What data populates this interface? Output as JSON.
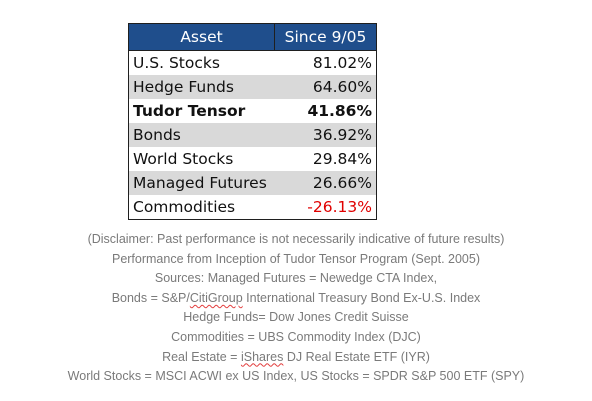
{
  "table": {
    "headers": [
      "Asset",
      "Since 9/05"
    ],
    "rows": [
      {
        "asset": "U.S. Stocks",
        "value": "81.02%"
      },
      {
        "asset": "Hedge Funds",
        "value": "64.60%"
      },
      {
        "asset": "Tudor Tensor",
        "value": "41.86%"
      },
      {
        "asset": "Bonds",
        "value": "36.92%"
      },
      {
        "asset": "World Stocks",
        "value": "29.84%"
      },
      {
        "asset": "Managed Futures",
        "value": "26.66%"
      },
      {
        "asset": "Commodities",
        "value": "-26.13%"
      }
    ]
  },
  "colors": {
    "header_bg": "#1f4e8c",
    "stripe": "#d9d9d9",
    "negative": "#e00000",
    "notes_text": "#7a7a7a"
  },
  "notes": {
    "disclaimer": "(Disclaimer: Past performance is not necessarily indicative of future results)",
    "performance": "Performance from Inception of Tudor Tensor Program (Sept. 2005)",
    "sources": "Sources: Managed Futures = Newedge CTA Index,",
    "bonds_prefix": "Bonds = S&P/",
    "bonds_citi": "CitiGroup",
    "bonds_suffix": " International Treasury Bond Ex-U.S. Index",
    "hedge": "Hedge Funds= Dow Jones Credit Suisse",
    "commodities": "Commodities = UBS Commodity Index (DJC)",
    "real_prefix": "Real Estate = ",
    "real_ishares": "iShares",
    "real_suffix": " DJ Real Estate ETF (IYR)",
    "world": "World Stocks = MSCI ACWI ex US Index, US Stocks = SPDR S&P 500 ETF (SPY)"
  }
}
